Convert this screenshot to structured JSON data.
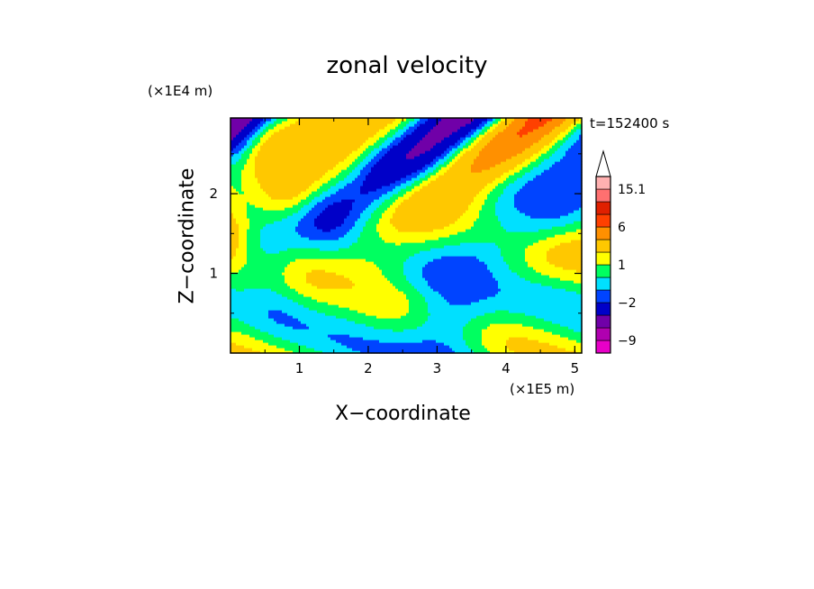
{
  "chart_data": {
    "type": "heatmap",
    "title": "zonal velocity",
    "xlabel": "X−coordinate",
    "ylabel": "Z−coordinate",
    "x_unit": "(×1E5 m)",
    "y_unit": "(×1E4 m)",
    "annotation": "t=152400 s",
    "xlim": [
      0,
      5.1
    ],
    "ylim": [
      0,
      2.95
    ],
    "x_ticks": [
      "1",
      "2",
      "3",
      "4",
      "5"
    ],
    "y_ticks": [
      "1",
      "2"
    ],
    "colorbar": {
      "labels": [
        "15.1",
        "6",
        "1",
        "−2",
        "−9"
      ],
      "label_values": [
        15.1,
        6,
        1,
        -2,
        -9
      ],
      "levels": [
        -12,
        -9,
        -6,
        -4,
        -2,
        -1,
        0,
        1,
        2,
        4,
        6,
        9,
        12,
        15.1
      ],
      "colors": [
        "#e800c8",
        "#b000b0",
        "#7000a8",
        "#0000c8",
        "#0044ff",
        "#00e0ff",
        "#00ff60",
        "#ffff00",
        "#ffc800",
        "#ff9000",
        "#ff4000",
        "#e02000",
        "#ff7070",
        "#ffb0b0"
      ],
      "extend_top": true
    }
  }
}
